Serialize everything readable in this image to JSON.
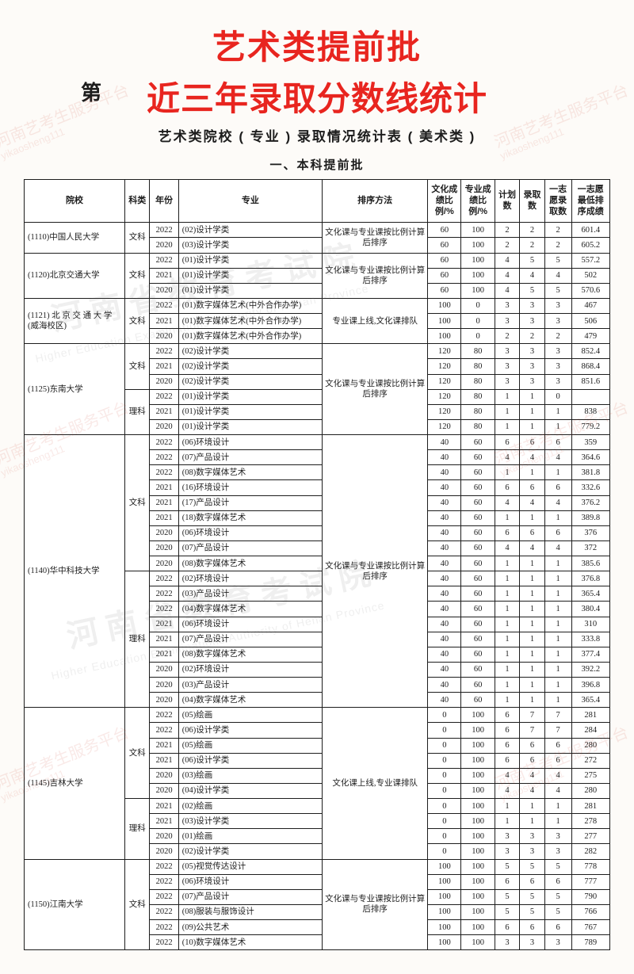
{
  "titles": {
    "line1": "艺术类提前批",
    "line2": "近三年录取分数线统计",
    "di": "第",
    "subtitle": "艺术类院校 ( 专业 ) 录取情况统计表 ( 美术类 )",
    "section": "一、本科提前批"
  },
  "columns": {
    "school": "院校",
    "subject": "科类",
    "year": "年份",
    "major": "专业",
    "method": "排序方法",
    "c1": "文化成绩比例/%",
    "c2": "专业成绩比例/%",
    "c3": "计划数",
    "c4": "录取数",
    "c5": "一志愿录取数",
    "c6": "一志愿最低排序成绩"
  },
  "watermarks": {
    "red_l1": "河南艺考生服务平台",
    "red_l2": "yikaosheng111",
    "gray_cn": "河南省教育考试院",
    "gray_en": "Higher Education Examinations Authority of Henan Province"
  },
  "groups": [
    {
      "school": "(1110)中国人民大学",
      "blocks": [
        {
          "subject": "文科",
          "method": "文化课与专业课按比例计算后排序",
          "rows": [
            {
              "year": "2022",
              "major": "(02)设计学类",
              "v": [
                "60",
                "100",
                "2",
                "2",
                "2",
                "601.4"
              ]
            },
            {
              "year": "2020",
              "major": "(03)设计学类",
              "v": [
                "60",
                "100",
                "2",
                "2",
                "2",
                "605.2"
              ]
            }
          ]
        }
      ]
    },
    {
      "school": "(1120)北京交通大学",
      "blocks": [
        {
          "subject": "文科",
          "method": "文化课与专业课按比例计算后排序",
          "rows": [
            {
              "year": "2022",
              "major": "(01)设计学类",
              "v": [
                "60",
                "100",
                "4",
                "5",
                "5",
                "557.2"
              ]
            },
            {
              "year": "2021",
              "major": "(01)设计学类",
              "v": [
                "60",
                "100",
                "4",
                "4",
                "4",
                "502"
              ]
            },
            {
              "year": "2020",
              "major": "(01)设计学类",
              "v": [
                "60",
                "100",
                "4",
                "5",
                "5",
                "570.6"
              ]
            }
          ]
        }
      ]
    },
    {
      "school": "(1121) 北 京 交 通 大 学(威海校区)",
      "blocks": [
        {
          "subject": "文科",
          "method": "专业课上线,文化课排队",
          "rows": [
            {
              "year": "2022",
              "major": "(01)数字媒体艺术(中外合作办学)",
              "v": [
                "100",
                "0",
                "3",
                "3",
                "3",
                "467"
              ]
            },
            {
              "year": "2021",
              "major": "(01)数字媒体艺术(中外合作办学)",
              "v": [
                "100",
                "0",
                "3",
                "3",
                "3",
                "506"
              ]
            },
            {
              "year": "2020",
              "major": "(01)数字媒体艺术(中外合作办学)",
              "v": [
                "100",
                "0",
                "2",
                "2",
                "2",
                "479"
              ]
            }
          ]
        }
      ]
    },
    {
      "school": "(1125)东南大学",
      "blocks": [
        {
          "subject": "文科",
          "method": "",
          "rows": [
            {
              "year": "2022",
              "major": "(02)设计学类",
              "v": [
                "120",
                "80",
                "3",
                "3",
                "3",
                "852.4"
              ]
            },
            {
              "year": "2021",
              "major": "(02)设计学类",
              "v": [
                "120",
                "80",
                "3",
                "3",
                "3",
                "868.4"
              ]
            },
            {
              "year": "2020",
              "major": "(02)设计学类",
              "v": [
                "120",
                "80",
                "3",
                "3",
                "3",
                "851.6"
              ]
            }
          ]
        },
        {
          "subject": "理科",
          "method": "文化课与专业课按比例计算后排序",
          "rows": [
            {
              "year": "2022",
              "major": "(01)设计学类",
              "v": [
                "120",
                "80",
                "1",
                "1",
                "0",
                ""
              ]
            },
            {
              "year": "2021",
              "major": "(01)设计学类",
              "v": [
                "120",
                "80",
                "1",
                "1",
                "1",
                "838"
              ]
            },
            {
              "year": "2020",
              "major": "(01)设计学类",
              "v": [
                "120",
                "80",
                "1",
                "1",
                "1",
                "779.2"
              ]
            }
          ]
        }
      ],
      "method_span_all": true
    },
    {
      "school": "(1140)华中科技大学",
      "blocks": [
        {
          "subject": "文科",
          "method": "",
          "rows": [
            {
              "year": "2022",
              "major": "(06)环境设计",
              "v": [
                "40",
                "60",
                "6",
                "6",
                "6",
                "359"
              ]
            },
            {
              "year": "2022",
              "major": "(07)产品设计",
              "v": [
                "40",
                "60",
                "4",
                "4",
                "4",
                "364.6"
              ]
            },
            {
              "year": "2022",
              "major": "(08)数字媒体艺术",
              "v": [
                "40",
                "60",
                "1",
                "1",
                "1",
                "381.8"
              ]
            },
            {
              "year": "2021",
              "major": "(16)环境设计",
              "v": [
                "40",
                "60",
                "6",
                "6",
                "6",
                "332.6"
              ]
            },
            {
              "year": "2021",
              "major": "(17)产品设计",
              "v": [
                "40",
                "60",
                "4",
                "4",
                "4",
                "376.2"
              ]
            },
            {
              "year": "2021",
              "major": "(18)数字媒体艺术",
              "v": [
                "40",
                "60",
                "1",
                "1",
                "1",
                "389.8"
              ]
            },
            {
              "year": "2020",
              "major": "(06)环境设计",
              "v": [
                "40",
                "60",
                "6",
                "6",
                "6",
                "376"
              ]
            },
            {
              "year": "2020",
              "major": "(07)产品设计",
              "v": [
                "40",
                "60",
                "4",
                "4",
                "4",
                "372"
              ]
            },
            {
              "year": "2020",
              "major": "(08)数字媒体艺术",
              "v": [
                "40",
                "60",
                "1",
                "1",
                "1",
                "385.6"
              ]
            }
          ]
        },
        {
          "subject": "理科",
          "method": "文化课与专业课按比例计算后排序",
          "rows": [
            {
              "year": "2022",
              "major": "(02)环境设计",
              "v": [
                "40",
                "60",
                "1",
                "1",
                "1",
                "376.8"
              ]
            },
            {
              "year": "2022",
              "major": "(03)产品设计",
              "v": [
                "40",
                "60",
                "1",
                "1",
                "1",
                "365.4"
              ]
            },
            {
              "year": "2022",
              "major": "(04)数字媒体艺术",
              "v": [
                "40",
                "60",
                "1",
                "1",
                "1",
                "380.4"
              ]
            },
            {
              "year": "2021",
              "major": "(06)环境设计",
              "v": [
                "40",
                "60",
                "1",
                "1",
                "1",
                "310"
              ]
            },
            {
              "year": "2021",
              "major": "(07)产品设计",
              "v": [
                "40",
                "60",
                "1",
                "1",
                "1",
                "333.8"
              ]
            },
            {
              "year": "2021",
              "major": "(08)数字媒体艺术",
              "v": [
                "40",
                "60",
                "1",
                "1",
                "1",
                "377.4"
              ]
            },
            {
              "year": "2020",
              "major": "(02)环境设计",
              "v": [
                "40",
                "60",
                "1",
                "1",
                "1",
                "392.2"
              ]
            },
            {
              "year": "2020",
              "major": "(03)产品设计",
              "v": [
                "40",
                "60",
                "1",
                "1",
                "1",
                "396.8"
              ]
            },
            {
              "year": "2020",
              "major": "(04)数字媒体艺术",
              "v": [
                "40",
                "60",
                "1",
                "1",
                "1",
                "365.4"
              ]
            }
          ]
        }
      ],
      "method_span_all": true
    },
    {
      "school": "(1145)吉林大学",
      "blocks": [
        {
          "subject": "文科",
          "method": "",
          "rows": [
            {
              "year": "2022",
              "major": "(05)绘画",
              "v": [
                "0",
                "100",
                "6",
                "7",
                "7",
                "281"
              ]
            },
            {
              "year": "2022",
              "major": "(06)设计学类",
              "v": [
                "0",
                "100",
                "6",
                "7",
                "7",
                "284"
              ]
            },
            {
              "year": "2021",
              "major": "(05)绘画",
              "v": [
                "0",
                "100",
                "6",
                "6",
                "6",
                "280"
              ]
            },
            {
              "year": "2021",
              "major": "(06)设计学类",
              "v": [
                "0",
                "100",
                "6",
                "6",
                "6",
                "272"
              ]
            },
            {
              "year": "2020",
              "major": "(03)绘画",
              "v": [
                "0",
                "100",
                "4",
                "4",
                "4",
                "275"
              ]
            },
            {
              "year": "2020",
              "major": "(04)设计学类",
              "v": [
                "0",
                "100",
                "4",
                "4",
                "4",
                "280"
              ]
            }
          ]
        },
        {
          "subject": "理科",
          "method": "文化课上线,专业课排队",
          "rows": [
            {
              "year": "2021",
              "major": "(02)绘画",
              "v": [
                "0",
                "100",
                "1",
                "1",
                "1",
                "281"
              ]
            },
            {
              "year": "2021",
              "major": "(03)设计学类",
              "v": [
                "0",
                "100",
                "1",
                "1",
                "1",
                "278"
              ]
            },
            {
              "year": "2020",
              "major": "(01)绘画",
              "v": [
                "0",
                "100",
                "3",
                "3",
                "3",
                "277"
              ]
            },
            {
              "year": "2020",
              "major": "(02)设计学类",
              "v": [
                "0",
                "100",
                "3",
                "3",
                "3",
                "282"
              ]
            }
          ]
        }
      ],
      "method_span_all": true
    },
    {
      "school": "(1150)江南大学",
      "blocks": [
        {
          "subject": "文科",
          "method": "文化课与专业课按比例计算后排序",
          "rows": [
            {
              "year": "2022",
              "major": "(05)视觉传达设计",
              "v": [
                "100",
                "100",
                "5",
                "5",
                "5",
                "778"
              ]
            },
            {
              "year": "2022",
              "major": "(06)环境设计",
              "v": [
                "100",
                "100",
                "6",
                "6",
                "6",
                "777"
              ]
            },
            {
              "year": "2022",
              "major": "(07)产品设计",
              "v": [
                "100",
                "100",
                "5",
                "5",
                "5",
                "790"
              ]
            },
            {
              "year": "2022",
              "major": "(08)服装与服饰设计",
              "v": [
                "100",
                "100",
                "5",
                "5",
                "5",
                "766"
              ]
            },
            {
              "year": "2022",
              "major": "(09)公共艺术",
              "v": [
                "100",
                "100",
                "6",
                "6",
                "6",
                "767"
              ]
            },
            {
              "year": "2022",
              "major": "(10)数字媒体艺术",
              "v": [
                "100",
                "100",
                "3",
                "3",
                "3",
                "789"
              ]
            }
          ]
        }
      ]
    }
  ]
}
